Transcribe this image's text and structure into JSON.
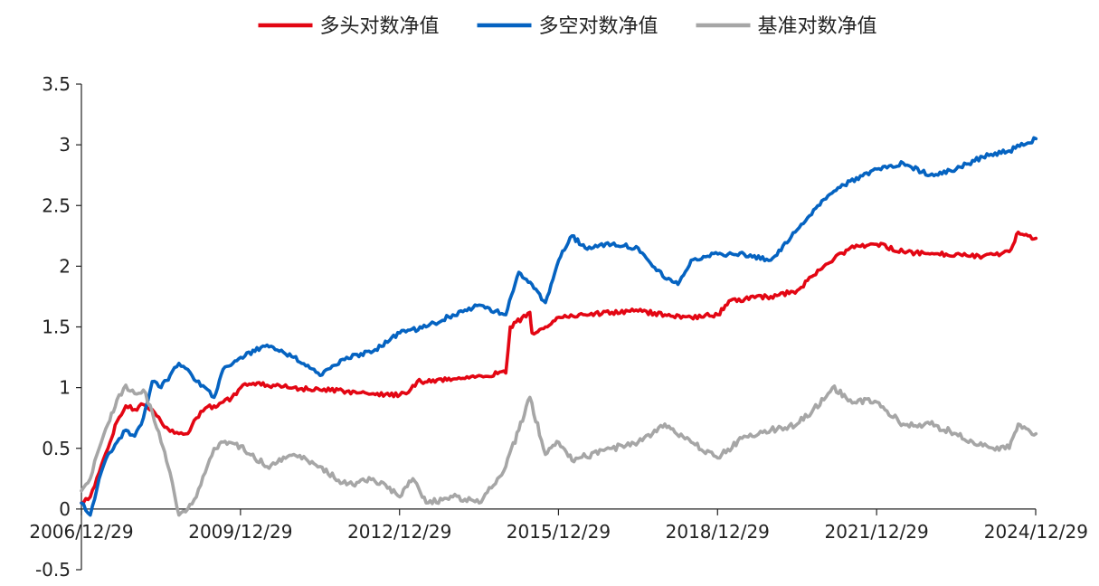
{
  "chart_data": {
    "type": "line",
    "title": "",
    "xlabel": "",
    "ylabel": "",
    "ylim": [
      -0.5,
      3.5
    ],
    "xlim": [
      "2006-12-29",
      "2024-12-29"
    ],
    "y_ticks": [
      -0.5,
      0,
      0.5,
      1,
      1.5,
      2,
      2.5,
      3,
      3.5
    ],
    "y_tick_labels": [
      "-0.5",
      "0",
      "0.5",
      "1",
      "1.5",
      "2",
      "2.5",
      "3",
      "3.5"
    ],
    "x_ticks": [
      "2006-12-29",
      "2009-12-29",
      "2012-12-29",
      "2015-12-29",
      "2018-12-29",
      "2021-12-29",
      "2024-12-29"
    ],
    "x_tick_labels": [
      "2006/12/29",
      "2009/12/29",
      "2012/12/29",
      "2015/12/29",
      "2018/12/29",
      "2021/12/29",
      "2024/12/29"
    ],
    "grid": false,
    "legend_position": "top-center",
    "series": [
      {
        "name": "多头对数净值",
        "color": "#e30613",
        "points": [
          [
            "2006-12-29",
            0.05
          ],
          [
            "2007-02-28",
            0.1
          ],
          [
            "2007-04-30",
            0.3
          ],
          [
            "2007-06-30",
            0.5
          ],
          [
            "2007-08-31",
            0.72
          ],
          [
            "2007-10-31",
            0.85
          ],
          [
            "2007-12-31",
            0.82
          ],
          [
            "2008-02-29",
            0.86
          ],
          [
            "2008-04-30",
            0.82
          ],
          [
            "2008-06-30",
            0.72
          ],
          [
            "2008-08-31",
            0.64
          ],
          [
            "2008-10-31",
            0.62
          ],
          [
            "2008-12-31",
            0.62
          ],
          [
            "2009-02-28",
            0.75
          ],
          [
            "2009-04-30",
            0.83
          ],
          [
            "2009-06-30",
            0.85
          ],
          [
            "2009-08-31",
            0.88
          ],
          [
            "2009-10-31",
            0.92
          ],
          [
            "2009-12-31",
            1.0
          ],
          [
            "2010-02-28",
            1.03
          ],
          [
            "2010-06-30",
            1.02
          ],
          [
            "2010-12-31",
            1.0
          ],
          [
            "2011-06-30",
            0.98
          ],
          [
            "2011-12-31",
            0.97
          ],
          [
            "2012-06-30",
            0.95
          ],
          [
            "2012-12-31",
            0.94
          ],
          [
            "2013-02-28",
            0.96
          ],
          [
            "2013-04-30",
            1.05
          ],
          [
            "2013-12-31",
            1.07
          ],
          [
            "2014-06-30",
            1.1
          ],
          [
            "2014-12-31",
            1.12
          ],
          [
            "2015-01-31",
            1.5
          ],
          [
            "2015-06-15",
            1.62
          ],
          [
            "2015-06-30",
            1.45
          ],
          [
            "2015-09-30",
            1.5
          ],
          [
            "2015-12-31",
            1.58
          ],
          [
            "2016-06-30",
            1.6
          ],
          [
            "2016-12-31",
            1.62
          ],
          [
            "2017-06-30",
            1.63
          ],
          [
            "2017-12-31",
            1.6
          ],
          [
            "2018-06-30",
            1.58
          ],
          [
            "2018-12-31",
            1.6
          ],
          [
            "2019-03-31",
            1.72
          ],
          [
            "2019-12-31",
            1.75
          ],
          [
            "2020-06-30",
            1.8
          ],
          [
            "2020-12-31",
            2.0
          ],
          [
            "2021-06-30",
            2.15
          ],
          [
            "2021-12-31",
            2.18
          ],
          [
            "2022-06-30",
            2.12
          ],
          [
            "2022-12-31",
            2.1
          ],
          [
            "2023-06-30",
            2.1
          ],
          [
            "2023-12-31",
            2.08
          ],
          [
            "2024-06-30",
            2.12
          ],
          [
            "2024-08-31",
            2.28
          ],
          [
            "2024-12-31",
            2.23
          ]
        ]
      },
      {
        "name": "多空对数净值",
        "color": "#0563c1",
        "points": [
          [
            "2006-12-29",
            0.05
          ],
          [
            "2007-02-28",
            -0.05
          ],
          [
            "2007-04-30",
            0.25
          ],
          [
            "2007-06-30",
            0.45
          ],
          [
            "2007-08-31",
            0.55
          ],
          [
            "2007-10-31",
            0.65
          ],
          [
            "2007-12-31",
            0.6
          ],
          [
            "2008-02-29",
            0.75
          ],
          [
            "2008-04-30",
            1.05
          ],
          [
            "2008-06-30",
            1.0
          ],
          [
            "2008-08-31",
            1.1
          ],
          [
            "2008-10-31",
            1.2
          ],
          [
            "2008-12-31",
            1.15
          ],
          [
            "2009-02-28",
            1.05
          ],
          [
            "2009-04-30",
            1.0
          ],
          [
            "2009-06-30",
            0.92
          ],
          [
            "2009-08-31",
            1.15
          ],
          [
            "2009-12-31",
            1.25
          ],
          [
            "2010-06-30",
            1.35
          ],
          [
            "2010-12-31",
            1.25
          ],
          [
            "2011-06-30",
            1.1
          ],
          [
            "2011-12-31",
            1.25
          ],
          [
            "2012-06-30",
            1.3
          ],
          [
            "2012-12-31",
            1.45
          ],
          [
            "2013-06-30",
            1.5
          ],
          [
            "2013-12-31",
            1.6
          ],
          [
            "2014-06-30",
            1.68
          ],
          [
            "2014-12-31",
            1.6
          ],
          [
            "2015-03-31",
            1.95
          ],
          [
            "2015-06-30",
            1.85
          ],
          [
            "2015-09-30",
            1.7
          ],
          [
            "2015-12-31",
            2.05
          ],
          [
            "2016-03-31",
            2.25
          ],
          [
            "2016-06-30",
            2.15
          ],
          [
            "2016-12-31",
            2.18
          ],
          [
            "2017-06-30",
            2.15
          ],
          [
            "2017-12-31",
            1.9
          ],
          [
            "2018-03-31",
            1.85
          ],
          [
            "2018-06-30",
            2.05
          ],
          [
            "2018-12-31",
            2.1
          ],
          [
            "2019-06-30",
            2.1
          ],
          [
            "2019-12-31",
            2.05
          ],
          [
            "2020-06-30",
            2.3
          ],
          [
            "2020-12-31",
            2.55
          ],
          [
            "2021-06-30",
            2.7
          ],
          [
            "2021-12-31",
            2.8
          ],
          [
            "2022-06-30",
            2.85
          ],
          [
            "2022-12-31",
            2.75
          ],
          [
            "2023-06-30",
            2.8
          ],
          [
            "2023-12-31",
            2.9
          ],
          [
            "2024-06-30",
            2.95
          ],
          [
            "2024-12-31",
            3.05
          ]
        ]
      },
      {
        "name": "基准对数净值",
        "color": "#a6a6a6",
        "points": [
          [
            "2006-12-29",
            0.15
          ],
          [
            "2007-02-28",
            0.25
          ],
          [
            "2007-04-30",
            0.5
          ],
          [
            "2007-06-30",
            0.7
          ],
          [
            "2007-08-31",
            0.9
          ],
          [
            "2007-10-31",
            1.02
          ],
          [
            "2007-12-31",
            0.95
          ],
          [
            "2008-02-29",
            0.98
          ],
          [
            "2008-04-30",
            0.8
          ],
          [
            "2008-06-30",
            0.55
          ],
          [
            "2008-08-31",
            0.3
          ],
          [
            "2008-10-31",
            -0.05
          ],
          [
            "2008-12-31",
            0.0
          ],
          [
            "2009-02-28",
            0.1
          ],
          [
            "2009-04-30",
            0.3
          ],
          [
            "2009-06-30",
            0.5
          ],
          [
            "2009-08-31",
            0.55
          ],
          [
            "2009-12-31",
            0.52
          ],
          [
            "2010-06-30",
            0.35
          ],
          [
            "2010-12-31",
            0.45
          ],
          [
            "2011-06-30",
            0.35
          ],
          [
            "2011-12-31",
            0.2
          ],
          [
            "2012-06-30",
            0.25
          ],
          [
            "2012-12-31",
            0.1
          ],
          [
            "2013-03-31",
            0.25
          ],
          [
            "2013-06-30",
            0.05
          ],
          [
            "2013-12-31",
            0.1
          ],
          [
            "2014-06-30",
            0.05
          ],
          [
            "2014-12-31",
            0.35
          ],
          [
            "2015-03-31",
            0.65
          ],
          [
            "2015-06-15",
            0.92
          ],
          [
            "2015-09-30",
            0.45
          ],
          [
            "2015-12-31",
            0.55
          ],
          [
            "2016-03-31",
            0.4
          ],
          [
            "2016-12-31",
            0.5
          ],
          [
            "2017-06-30",
            0.55
          ],
          [
            "2017-12-31",
            0.7
          ],
          [
            "2018-06-30",
            0.55
          ],
          [
            "2018-12-31",
            0.42
          ],
          [
            "2019-06-30",
            0.6
          ],
          [
            "2019-12-31",
            0.65
          ],
          [
            "2020-06-30",
            0.7
          ],
          [
            "2020-12-31",
            0.9
          ],
          [
            "2021-02-28",
            1.0
          ],
          [
            "2021-06-30",
            0.9
          ],
          [
            "2021-12-31",
            0.88
          ],
          [
            "2022-06-30",
            0.7
          ],
          [
            "2022-12-31",
            0.7
          ],
          [
            "2023-06-30",
            0.62
          ],
          [
            "2023-12-31",
            0.52
          ],
          [
            "2024-06-30",
            0.5
          ],
          [
            "2024-08-31",
            0.7
          ],
          [
            "2024-12-31",
            0.62
          ]
        ]
      }
    ]
  }
}
